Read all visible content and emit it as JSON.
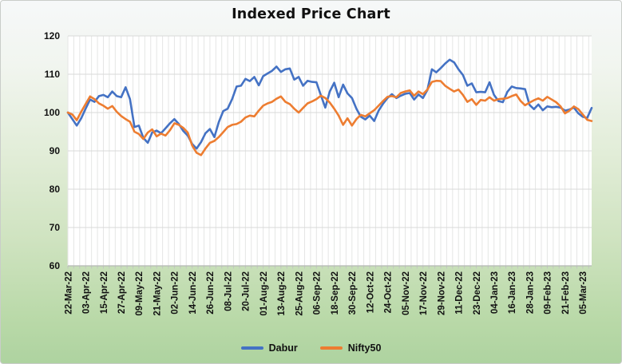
{
  "chart_data": {
    "type": "line",
    "title": "Indexed Price Chart",
    "xlabel": "",
    "ylabel": "",
    "ylim": [
      60,
      120
    ],
    "y_ticks": [
      60,
      70,
      80,
      90,
      100,
      110,
      120
    ],
    "grid": true,
    "legend_position": "bottom",
    "x_tick_labels": [
      "22-Mar-22",
      "03-Apr-22",
      "15-Apr-22",
      "27-Apr-22",
      "09-May-22",
      "21-May-22",
      "02-Jun-22",
      "14-Jun-22",
      "26-Jun-22",
      "08-Jul-22",
      "20-Jul-22",
      "01-Aug-22",
      "13-Aug-22",
      "25-Aug-22",
      "06-Sep-22",
      "18-Sep-22",
      "30-Sep-22",
      "12-Oct-22",
      "24-Oct-22",
      "05-Nov-22",
      "17-Nov-22",
      "29-Nov-22",
      "11-Dec-22",
      "23-Dec-22",
      "04-Jan-23",
      "16-Jan-23",
      "28-Jan-23",
      "09-Feb-23",
      "21-Feb-23",
      "05-Mar-23"
    ],
    "sample_interval_days": 3,
    "samples_per_label_interval": 4,
    "series": [
      {
        "name": "Dabur",
        "color": "#4472C4",
        "values": [
          100,
          98.3,
          96.6,
          98.5,
          101,
          103.4,
          102.8,
          104.3,
          104.6,
          104,
          105.5,
          104.3,
          104,
          106.6,
          103.5,
          96.2,
          96.6,
          93.4,
          92.1,
          94.8,
          95.3,
          94.6,
          95.9,
          97.2,
          98.3,
          97,
          95.2,
          94,
          91.8,
          90.6,
          92.3,
          94.6,
          95.7,
          93.6,
          97.5,
          100.4,
          101,
          103.5,
          106.8,
          107,
          108.8,
          108.2,
          109.3,
          107.1,
          109.5,
          110.2,
          110.9,
          112,
          110.6,
          111.3,
          111.5,
          108.6,
          109.3,
          107,
          108.3,
          108,
          107.9,
          104.5,
          101.3,
          105.5,
          107.8,
          104,
          107.3,
          105,
          103.8,
          101,
          98.9,
          98.2,
          99.2,
          97.8,
          100.5,
          102.3,
          103.8,
          104.8,
          103.8,
          104.4,
          104.9,
          105.1,
          103.4,
          104.7,
          103.8,
          105.9,
          111.3,
          110.5,
          111.6,
          112.8,
          113.8,
          113.1,
          111.3,
          109.8,
          107,
          107.6,
          105.3,
          105.4,
          105.3,
          107.9,
          104.6,
          103,
          102.7,
          105.4,
          106.8,
          106.4,
          106.3,
          106.1,
          102,
          100.9,
          102.1,
          100.6,
          101.6,
          101.4,
          101.5,
          101.3,
          100.5,
          100.8,
          101.3,
          99.8,
          98.9,
          98.6,
          101.2
        ]
      },
      {
        "name": "Nifty50",
        "color": "#ED7D31",
        "values": [
          100,
          99.5,
          98,
          100.2,
          102.2,
          104.2,
          103.5,
          102.4,
          101.8,
          101,
          101.7,
          100.2,
          99.1,
          98.3,
          97.6,
          95,
          94.4,
          93.1,
          94.8,
          95.6,
          93.8,
          94.5,
          94,
          95.4,
          97.2,
          96.8,
          96,
          94.8,
          91.4,
          89.5,
          88.9,
          90.6,
          92.1,
          92.6,
          93.6,
          94.9,
          96.2,
          96.8,
          97,
          97.6,
          98.7,
          99.2,
          99,
          100.5,
          101.8,
          102.4,
          102.8,
          103.6,
          104.2,
          102.8,
          102.2,
          101,
          100,
          101.2,
          102.4,
          102.9,
          103.5,
          104.4,
          103.8,
          102.6,
          101,
          99.2,
          96.8,
          98.5,
          96.6,
          98.3,
          99.4,
          99,
          99.8,
          100.6,
          101.8,
          103,
          104.1,
          104.3,
          104,
          105.1,
          105.5,
          105.8,
          104.4,
          105.5,
          104.8,
          106,
          108,
          108.3,
          108.2,
          107,
          106.2,
          105.5,
          106,
          104.6,
          102.8,
          103.5,
          102,
          103.3,
          103.1,
          104,
          103.1,
          103.5,
          103.6,
          103.8,
          104.3,
          104.7,
          103,
          101.9,
          102.6,
          103.2,
          103.7,
          103.1,
          104.1,
          103.4,
          102.7,
          101.6,
          99.8,
          100.5,
          101.6,
          100.9,
          99.5,
          98.1,
          97.8
        ]
      }
    ]
  }
}
